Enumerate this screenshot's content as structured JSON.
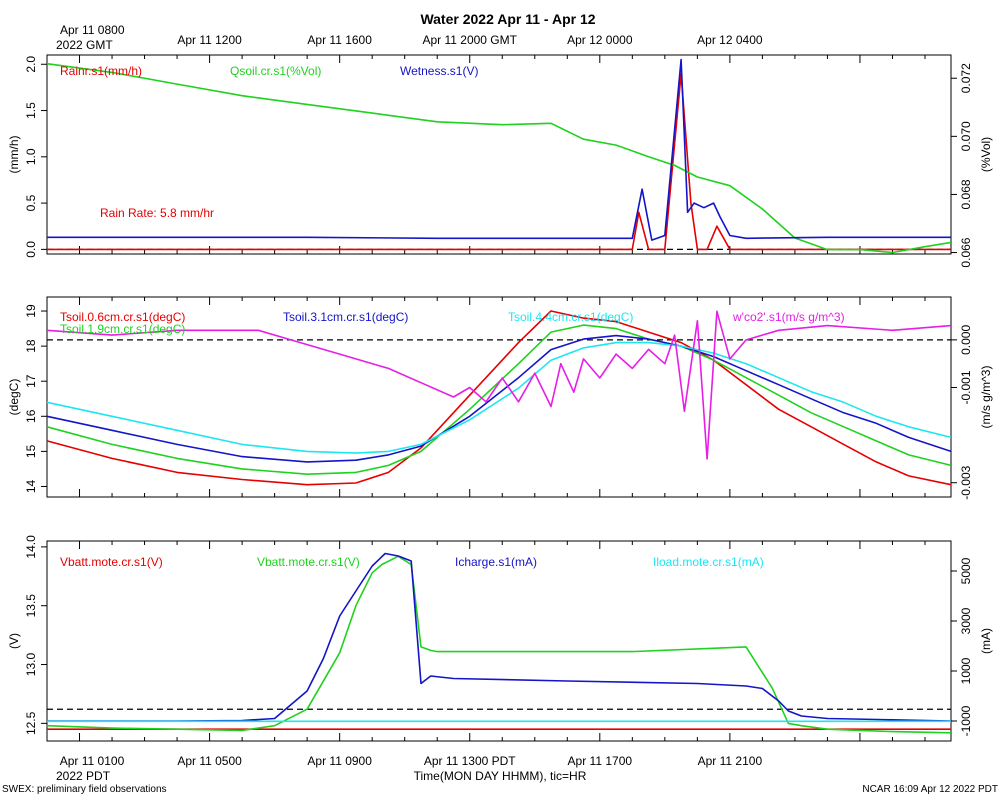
{
  "title": "Water 2022 Apr 11 - Apr 12",
  "top_axis": {
    "origin_label_1": "Apr 11 0800",
    "origin_label_2": "2022 GMT",
    "ticks": [
      "Apr 11 1200",
      "Apr 11 1600",
      "Apr 11 2000 GMT",
      "Apr 12 0000",
      "Apr 12 0400"
    ]
  },
  "bottom_axis": {
    "ticks": [
      "Apr 11 0100",
      "Apr 11 0500",
      "Apr 11 0900",
      "Apr 11 1300 PDT",
      "Apr 11 1700",
      "Apr 11 2100"
    ],
    "year_label": "2022 PDT",
    "xlabel": "Time(MON DAY HHMM), tic=HR"
  },
  "footer": {
    "left": "SWEX: preliminary field observations",
    "right": "NCAR 16:09 Apr 12 2022 PDT"
  },
  "colors": {
    "red": "#e60000",
    "green": "#1ed21e",
    "blue": "#1414c8",
    "cyan": "#1ee6f0",
    "magenta": "#e61ee6"
  },
  "chart_data": [
    {
      "type": "line",
      "name": "water",
      "x_unit": "hours since Apr 11 0000 PDT",
      "xlim": [
        0,
        27.8
      ],
      "left_axis": {
        "label": "(mm/h)",
        "ylim": [
          -0.05,
          2.1
        ],
        "ticks": [
          "0.0",
          "0.5",
          "1.0",
          "1.5",
          "2.0"
        ]
      },
      "right_axis": {
        "label": "(%Vol)",
        "ylim": [
          0.06595,
          0.0728
        ],
        "ticks": [
          "0.066",
          "0.068",
          "0.070",
          "0.072"
        ]
      },
      "ref_line_left": 0,
      "annotation": "Rain Rate: 5.8 mm/hr",
      "series": [
        {
          "name": "Rainr.s1(mm/h)",
          "color_key": "red",
          "axis": "left",
          "x": [
            0,
            17.5,
            18.0,
            18.2,
            18.5,
            18.8,
            19.0,
            19.5,
            19.8,
            20.0,
            20.3,
            20.6,
            21,
            27.8
          ],
          "y": [
            0,
            0,
            0,
            0.4,
            0,
            0,
            0,
            1.9,
            0.5,
            0,
            0,
            0.25,
            0,
            0
          ]
        },
        {
          "name": "Qsoil.cr.s1(%Vol)",
          "color_key": "green",
          "axis": "right",
          "x": [
            0,
            2,
            4,
            6,
            8,
            10,
            12,
            14,
            15.5,
            16.5,
            17.5,
            18.5,
            19.3,
            20,
            21,
            22,
            23,
            24,
            25,
            26,
            27,
            27.8
          ],
          "y": [
            0.0725,
            0.0722,
            0.0718,
            0.0714,
            0.0711,
            0.0708,
            0.0705,
            0.0704,
            0.07045,
            0.0699,
            0.0697,
            0.0693,
            0.069,
            0.0686,
            0.0683,
            0.0675,
            0.0665,
            0.0661,
            0.0661,
            0.066,
            0.0662,
            0.06635
          ]
        },
        {
          "name": "Wetness.s1(V)",
          "color_key": "blue",
          "axis": "left",
          "x": [
            0,
            5,
            8,
            12,
            15,
            17.5,
            18.0,
            18.3,
            18.6,
            19.0,
            19.5,
            19.7,
            19.9,
            20.2,
            20.5,
            20.7,
            21.0,
            21.5,
            24,
            27.8
          ],
          "y": [
            0.13,
            0.13,
            0.13,
            0.12,
            0.12,
            0.12,
            0.12,
            0.65,
            0.1,
            0.15,
            2.05,
            0.4,
            0.5,
            0.45,
            0.5,
            0.35,
            0.15,
            0.12,
            0.13,
            0.13
          ]
        }
      ]
    },
    {
      "type": "line",
      "name": "soil temperature",
      "x_unit": "hours since Apr 11 0000 PDT",
      "xlim": [
        0,
        27.8
      ],
      "left_axis": {
        "label": "(degC)",
        "ylim": [
          13.7,
          19.4
        ],
        "ticks": [
          "14",
          "15",
          "16",
          "17",
          "18",
          "19"
        ]
      },
      "right_axis": {
        "label": "(m/s g/m^3)",
        "ylim": [
          -0.0033,
          0.0009
        ],
        "ticks": [
          "-0.003",
          "-0.001",
          "0.000"
        ]
      },
      "ref_line_right": 0,
      "series": [
        {
          "name": "Tsoil.0.6cm.cr.s1(degC)",
          "color_key": "red",
          "axis": "left",
          "x": [
            0,
            2,
            4,
            6,
            8,
            9.5,
            10.5,
            11.5,
            13,
            14.5,
            15.5,
            16.5,
            17.5,
            18.5,
            19.5,
            20.5,
            21.5,
            22.5,
            23.5,
            24.5,
            25.5,
            26.5,
            27.8
          ],
          "y": [
            15.3,
            14.8,
            14.4,
            14.2,
            14.05,
            14.1,
            14.4,
            15.1,
            16.6,
            18.1,
            19.0,
            18.8,
            18.7,
            18.4,
            18.1,
            17.6,
            16.9,
            16.2,
            15.7,
            15.2,
            14.7,
            14.3,
            14.05
          ]
        },
        {
          "name": "Tsoil.1.9cm.cr.s1(degC)",
          "color_key": "green",
          "axis": "left",
          "x": [
            0,
            2,
            4,
            6,
            8,
            9.5,
            10.5,
            11.5,
            13,
            14.5,
            15.5,
            16.5,
            17.5,
            18.5,
            19.5,
            20.5,
            21.5,
            22.5,
            23.5,
            24.5,
            25.5,
            26.5,
            27.8
          ],
          "y": [
            15.7,
            15.2,
            14.8,
            14.5,
            14.35,
            14.4,
            14.6,
            15.0,
            16.2,
            17.5,
            18.4,
            18.6,
            18.5,
            18.2,
            18.0,
            17.6,
            17.1,
            16.6,
            16.1,
            15.7,
            15.3,
            14.9,
            14.6
          ]
        },
        {
          "name": "Tsoil.3.1cm.cr.s1(degC)",
          "color_key": "blue",
          "axis": "left",
          "x": [
            0,
            2,
            4,
            6,
            8,
            9.5,
            10.5,
            11.5,
            13,
            14.5,
            15.5,
            16.5,
            17.5,
            18.5,
            19.5,
            20.5,
            21.5,
            22.5,
            23.5,
            24.5,
            25.5,
            26.5,
            27.8
          ],
          "y": [
            16.0,
            15.6,
            15.2,
            14.85,
            14.7,
            14.75,
            14.9,
            15.15,
            16.0,
            17.1,
            17.9,
            18.2,
            18.3,
            18.2,
            18.0,
            17.7,
            17.3,
            16.9,
            16.5,
            16.1,
            15.8,
            15.4,
            15.0
          ]
        },
        {
          "name": "Tsoil.4.4cm.cr.s1(degC)",
          "color_key": "cyan",
          "axis": "left",
          "x": [
            0,
            2,
            4,
            6,
            8,
            9.5,
            10.5,
            11.5,
            13,
            14.5,
            15.5,
            16.5,
            17.5,
            18.5,
            19.5,
            20.5,
            21.5,
            22.5,
            23.5,
            24.5,
            25.5,
            26.5,
            27.8
          ],
          "y": [
            16.4,
            16.0,
            15.6,
            15.2,
            15.0,
            14.95,
            15.0,
            15.2,
            15.9,
            16.8,
            17.6,
            17.95,
            18.1,
            18.1,
            18.0,
            17.8,
            17.5,
            17.1,
            16.7,
            16.4,
            16.0,
            15.7,
            15.4
          ]
        },
        {
          "name": "w'co2'.s1(m/s g/m^3)",
          "color_key": "magenta",
          "axis": "right",
          "x": [
            0,
            2,
            4,
            6.5,
            7.5,
            8.5,
            9.5,
            10.5,
            11.5,
            12.5,
            13.0,
            13.5,
            14.0,
            14.5,
            15.0,
            15.5,
            15.8,
            16.2,
            16.5,
            17.0,
            17.5,
            18.0,
            18.5,
            19.0,
            19.3,
            19.6,
            20.0,
            20.3,
            20.6,
            21.0,
            21.5,
            22.5,
            24,
            26,
            27.8
          ],
          "y": [
            0.0002,
            0.0001,
            0.0002,
            0.0002,
            0.0,
            -0.0002,
            -0.0004,
            -0.0006,
            -0.0009,
            -0.0012,
            -0.001,
            -0.0013,
            -0.0008,
            -0.0013,
            -0.0007,
            -0.0014,
            -0.0005,
            -0.0011,
            -0.0004,
            -0.0008,
            -0.0003,
            -0.0006,
            -0.0002,
            -0.0005,
            0.0001,
            -0.0015,
            0.0004,
            -0.0025,
            0.0006,
            -0.0004,
            0.0,
            0.0002,
            0.0003,
            0.0002,
            0.0003
          ]
        }
      ]
    },
    {
      "type": "line",
      "name": "power",
      "x_unit": "hours since Apr 11 0000 PDT",
      "xlim": [
        0,
        27.8
      ],
      "left_axis": {
        "label": "(V)",
        "ylim": [
          12.35,
          14.05
        ],
        "ticks": [
          "12.5",
          "13.0",
          "13.5",
          "14.0"
        ]
      },
      "right_axis": {
        "label": "(mA)",
        "ylim": [
          -1800,
          6200
        ],
        "ticks": [
          "-1000",
          "1000",
          "3000",
          "5000"
        ]
      },
      "ref_line_left": 12.62,
      "series": [
        {
          "name": "Vbatt.mote.cr.s1(V)",
          "color_key": "red",
          "axis": "left",
          "x": [
            0,
            27.8
          ],
          "y": [
            12.45,
            12.45
          ]
        },
        {
          "name": "Vbatt.mote.cr.s1(V)",
          "color_key": "green",
          "axis": "left",
          "x": [
            0,
            2,
            4,
            6,
            7.0,
            8.0,
            9.0,
            9.5,
            10.0,
            10.3,
            10.8,
            11.2,
            11.5,
            11.8,
            12.0,
            18,
            21.5,
            22.3,
            22.8,
            23.2,
            24,
            25,
            26,
            27.8
          ],
          "y": [
            12.48,
            12.46,
            12.45,
            12.44,
            12.48,
            12.62,
            13.1,
            13.5,
            13.78,
            13.85,
            13.92,
            13.85,
            13.15,
            13.12,
            13.11,
            13.11,
            13.15,
            12.8,
            12.5,
            12.48,
            12.45,
            12.44,
            12.43,
            12.42
          ]
        },
        {
          "name": "Icharge.s1(mA)",
          "color_key": "blue",
          "axis": "right",
          "x": [
            0,
            2,
            4,
            6,
            7.0,
            8.0,
            8.5,
            9.0,
            9.5,
            10.0,
            10.4,
            10.8,
            11.2,
            11.5,
            11.8,
            12.5,
            16,
            20,
            21.5,
            22.0,
            22.5,
            22.8,
            23.2,
            24,
            26,
            27.8
          ],
          "y": [
            -1000,
            -1000,
            -1000,
            -980,
            -900,
            200,
            1500,
            3200,
            4200,
            5200,
            5700,
            5600,
            5400,
            500,
            800,
            700,
            600,
            500,
            400,
            300,
            -200,
            -600,
            -800,
            -900,
            -950,
            -1000
          ]
        },
        {
          "name": "Iload.mote.cr.s1(mA)",
          "color_key": "cyan",
          "axis": "right",
          "x": [
            0,
            27.8
          ],
          "y": [
            -1010,
            -1010
          ]
        }
      ]
    }
  ]
}
